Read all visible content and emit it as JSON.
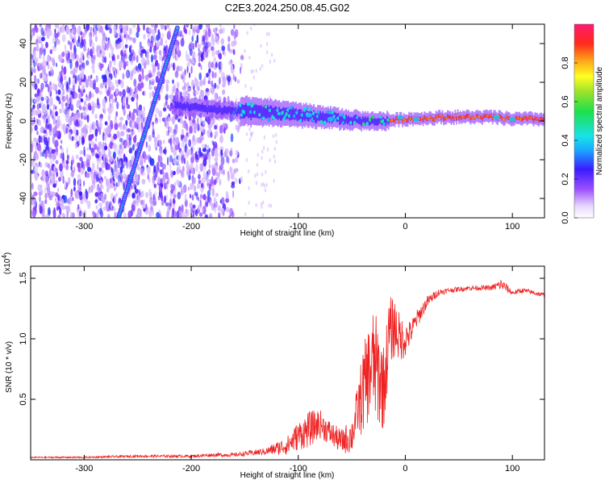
{
  "title": "C2E3.2024.250.08.45.G02",
  "chart_data": [
    {
      "type": "heatmap",
      "xlabel": "Height of straight line (km)",
      "ylabel": "Frequency (Hz)",
      "xlim": [
        -350,
        130
      ],
      "ylim": [
        -50,
        50
      ],
      "xticks": [
        -300,
        -200,
        -100,
        0,
        100
      ],
      "yticks": [
        -40,
        -20,
        0,
        20,
        40
      ],
      "colorbar": {
        "label": "Normalized spectral amplitude",
        "range": [
          0.0,
          1.0
        ],
        "ticks": [
          0.0,
          0.2,
          0.4,
          0.6,
          0.8
        ],
        "tick_labels": [
          "0.0",
          "0.2",
          "0.4",
          "0.6",
          "0.8"
        ]
      },
      "features": {
        "noise_region_x": [
          -350,
          -150
        ],
        "sweep_line": {
          "x": [
            -268,
            -213
          ],
          "y": [
            -50,
            48
          ]
        },
        "signal_band": {
          "x": [
            -210,
            -180,
            -150,
            -120,
            -100,
            -80,
            -60,
            -40,
            -20,
            0,
            40,
            80,
            100,
            130
          ],
          "y": [
            8,
            6,
            5,
            4,
            3,
            2,
            1,
            0,
            0,
            1,
            2,
            2,
            1,
            1
          ]
        }
      }
    },
    {
      "type": "line",
      "xlabel": "Height of straight line (km)",
      "ylabel": "SNR (10 * v/v)",
      "y_multiplier": "(x10",
      "y_multiplier_exp": "4",
      "xlim": [
        -350,
        130
      ],
      "ylim": [
        0,
        1.6
      ],
      "xticks": [
        -300,
        -200,
        -100,
        0,
        100
      ],
      "yticks": [
        0.5,
        1.0,
        1.5
      ],
      "ytick_labels": [
        "0.5",
        "1.0",
        "1.5"
      ],
      "series": [
        {
          "color": "#ee2222",
          "x": [
            -350,
            -300,
            -250,
            -200,
            -180,
            -160,
            -150,
            -130,
            -110,
            -100,
            -90,
            -80,
            -70,
            -60,
            -50,
            -45,
            -40,
            -35,
            -30,
            -25,
            -20,
            -15,
            -10,
            -5,
            0,
            5,
            10,
            20,
            30,
            40,
            60,
            80,
            90,
            100,
            110,
            120,
            130
          ],
          "y": [
            0.02,
            0.02,
            0.03,
            0.03,
            0.04,
            0.04,
            0.05,
            0.07,
            0.12,
            0.2,
            0.25,
            0.3,
            0.22,
            0.15,
            0.2,
            0.4,
            0.55,
            0.7,
            0.8,
            0.7,
            0.6,
            1.05,
            1.1,
            1.0,
            1.0,
            1.05,
            1.15,
            1.3,
            1.38,
            1.4,
            1.42,
            1.42,
            1.45,
            1.38,
            1.4,
            1.38,
            1.36
          ],
          "noise_amplitude": [
            0.005,
            0.008,
            0.01,
            0.012,
            0.015,
            0.015,
            0.02,
            0.03,
            0.08,
            0.12,
            0.15,
            0.12,
            0.1,
            0.1,
            0.15,
            0.2,
            0.35,
            0.4,
            0.45,
            0.45,
            0.35,
            0.3,
            0.25,
            0.2,
            0.15,
            0.1,
            0.08,
            0.05,
            0.03,
            0.02,
            0.02,
            0.02,
            0.05,
            0.02,
            0.02,
            0.02,
            0.02
          ]
        }
      ]
    }
  ]
}
